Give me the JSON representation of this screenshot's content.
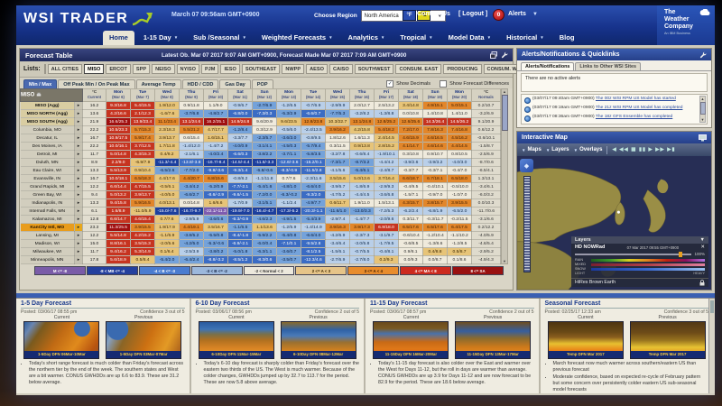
{
  "top": {
    "logo_text": "WSI TRADER",
    "date_text": "March 07 09:56am GMT+0900",
    "choose_region_label": "Choose Region",
    "region_value": "North America",
    "deg_f": "°F",
    "deg_c": "°C",
    "contact_us": "Contact Us",
    "logout": "[ Logout ]",
    "alerts_count": "0",
    "alerts_label": "Alerts",
    "twc_line1": "The",
    "twc_line2": "Weather",
    "twc_line3": "Company",
    "twc_sub": "An IBM Business"
  },
  "nav": {
    "tabs": [
      {
        "label": "Home",
        "active": true,
        "caret": false
      },
      {
        "label": "1-15 Day",
        "active": false,
        "caret": true
      },
      {
        "label": "Sub /Seasonal",
        "active": false,
        "caret": true
      },
      {
        "label": "Weighted Forecasts",
        "active": false,
        "caret": true
      },
      {
        "label": "Analytics",
        "active": false,
        "caret": true
      },
      {
        "label": "Tropical",
        "active": false,
        "caret": true
      },
      {
        "label": "Model Data",
        "active": false,
        "caret": true
      },
      {
        "label": "Historical",
        "active": false,
        "caret": true
      },
      {
        "label": "Blog",
        "active": false,
        "caret": false
      }
    ]
  },
  "forecast_table": {
    "title": "Forecast Table",
    "status": "Latest Ob. Mar 07 2017 9:07 AM GMT+0900, Forecast Made Mar 07 2017 7:09 AM GMT+0900",
    "lists_label": "Lists:",
    "lists": [
      "ALL CITIES",
      "MISO",
      "ERCOT",
      "SPP",
      "NEISO",
      "NYISO",
      "PJM",
      "IESO",
      "SOUTHEAST",
      "NWPP",
      "AESO",
      "CAISO",
      "SOUTHWEST",
      "CONSUM. EAST",
      "PRODUCING",
      "CONSUM. WEST",
      "EAST"
    ],
    "active_list": "MISO",
    "more_button": "»",
    "view_tabs": [
      "Min / Max",
      "Off Peak Min / On Peak Max",
      "Average Temp",
      "HDD / CDD",
      "Gas Day",
      "POP"
    ],
    "active_view_tab": "Min / Max",
    "show_decimals_label": "Show Decimals",
    "show_decimals_checked": "✓",
    "show_differences_label": "Show Forecast Differences",
    "group_label": "MISO",
    "current_header": {
      "line1": "°C",
      "line2": "Current"
    },
    "normals_header": {
      "line1": "°C",
      "line2": "Normals"
    },
    "days": [
      {
        "name": "Mon",
        "date": "(Mar 6)"
      },
      {
        "name": "Tue",
        "date": "(Mar 7)"
      },
      {
        "name": "Wed",
        "date": "(Mar 8)"
      },
      {
        "name": "Thu",
        "date": "(Mar 9)"
      },
      {
        "name": "Fri",
        "date": "(Mar 10)"
      },
      {
        "name": "Sat",
        "date": "(Mar 11)"
      },
      {
        "name": "Sun",
        "date": "(Mar 12)"
      },
      {
        "name": "Mon",
        "date": "(Mar 13)"
      },
      {
        "name": "Tue",
        "date": "(Mar 14)"
      },
      {
        "name": "Wed",
        "date": "(Mar 15)"
      },
      {
        "name": "Thu",
        "date": "(Mar 16)"
      },
      {
        "name": "Fri",
        "date": "(Mar 17)"
      },
      {
        "name": "Sat",
        "date": "(Mar 18)"
      },
      {
        "name": "Sun",
        "date": "(Mar 19)"
      },
      {
        "name": "Mon",
        "date": "(Mar 20)"
      }
    ],
    "rows": [
      {
        "label": "MISO (Agg)",
        "type": "agg",
        "current": "16.2",
        "cells": [
          "9.3/16.8|r",
          "5.4/15.5|r",
          "1.9/12.0|t",
          "0.9/11.8|w",
          "1.1/9.0|w",
          "-0.9/6.7|lb",
          "-2.7/6.9|mb",
          "-1.2/6.5|lb",
          "-0.7/6.9|lb",
          "-2.9/9.9|lb",
          "2.0/12.7|w",
          "2.5/13.2|w",
          "3.4/14.8|t",
          "4.9/15.1|o",
          "5.0/15.1|o"
        ],
        "normals": "0.2/10.7"
      },
      {
        "label": "MISO NORTH (Agg)",
        "type": "agg",
        "current": "13.6",
        "cells": [
          "4.2/16.6|r",
          "2.1/12.3|r",
          "-1.6/7.6|t",
          "-3.7/6.8|mb",
          "-4.8/2.7|mb",
          "-6.8/0.0|b",
          "-7.3/0.3|b",
          "-5.3/2.9|mb",
          "-6.6/0.7|b",
          "-7.7/5.3|mb",
          "-3.2/8.2|lb",
          "-1.3/8.8|lb",
          "0.0/10.8|w",
          "1.4/10.8|w",
          "1.4/11.0|w"
        ],
        "normals": "-3.2/6.9"
      },
      {
        "label": "MISO SOUTH (Agg)",
        "type": "agg",
        "current": "21.9",
        "cells": [
          "16.6/25.3|dr",
          "13.9/23.4|r",
          "11.1/23.4|o",
          "13.1/24.6|r",
          "16.2/25.1|dr",
          "14.9/24.8|r",
          "9.6/20.9|w",
          "9.6/23.5|t",
          "12.8/23.8|o",
          "10.3/22.7|t",
          "13.1/24.8|o",
          "12.8/25.2|o",
          "12.6/25.6|o",
          "14.3/26.4|r",
          "14.5/26.2|r"
        ],
        "normals": "9.1/20.9"
      },
      {
        "label": "Columbia, MO",
        "type": "city",
        "current": "22.2",
        "cells": [
          "10.5/23.3|r",
          "5.7/15.3|o",
          "2.3/18.3|t",
          "5.5/21.2|o",
          "4.7/17.7|t",
          "-1.2/8.4|mb",
          "0.3/12.9|w",
          "-0.5/6.0|lb",
          "-2.4/13.5|lb",
          "3.9/16.2|o",
          "4.2/15.8|t",
          "5.4/18.2|o",
          "7.2/17.0|o",
          "7.8/16.3|o",
          "7.4/16.8|o"
        ],
        "normals": "0.6/12.2"
      },
      {
        "label": "Decatur, IL",
        "type": "city",
        "current": "16.7",
        "cells": [
          "10.9/17.5|r",
          "5.9/17.4|o",
          "3.9/13.7|t",
          "0.6/15.4|w",
          "1.6/15.1|t",
          "-3.3/7.7|lb",
          "-2.3/5.7|mb",
          "-3.6/3.0|mb",
          "-0.8/9.5|lb",
          "1.8/12.6|w",
          "1.6/11.3|w",
          "2.4/14.5|t",
          "4.6/15.9|o",
          "4.6/16.5|o",
          "4.5/16.2|o"
        ],
        "normals": "-0.6/10.1"
      },
      {
        "label": "Des Moines, IA",
        "type": "city",
        "current": "22.2",
        "cells": [
          "10.0/16.1|r",
          "3.7/12.5|r",
          "1.7/11.8|t",
          "-1.4/12.0|lb",
          "-1.4/7.2|lb",
          "-4.0/0.9|mb",
          "-3.1/4.1|mb",
          "-4.5/0.3|mb",
          "-5.7/9.4|mb",
          "0.3/11.5|w",
          "0.9/13.8|t",
          "2.8/15.2|t",
          "4.1/14.7|o",
          "4.6/14.6|o",
          "4.4/14.5|o"
        ],
        "normals": "-1.5/8.7"
      },
      {
        "label": "Detroit, MI",
        "type": "city",
        "current": "11.7",
        "cells": [
          "5.0/14.8|r",
          "4.3/15.3|r",
          "0.4/9.2|t",
          "-2.1/6.1|lb",
          "-4.0/2.4|mb",
          "-6.6/0.3|b",
          "-3.8/2.2|mb",
          "-3.7/1.1|mb",
          "-5.8/3.5|mb",
          "-3.2/7.8|lb",
          "-0.6/8.4|lb",
          "-1.9/10.1|lb",
          "0.3/10.8|w",
          "0.9/10.7|w",
          "0.8/10.5|w"
        ],
        "normals": "-2.5/6.9"
      },
      {
        "label": "Duluth, MN",
        "type": "city",
        "current": "8.9",
        "cells": [
          "2.2/9.0|r",
          "-6.9/7.9|t",
          "-11.3/-4.4|db",
          "-13.8/-3.8|b",
          "-16.7/-8.4|db",
          "-14.5/-4.4|db",
          "-11.6/-3.3|db",
          "-12.6/-3.6|b",
          "-15.2/0.1|b",
          "-7.3/1.7|mb",
          "-8.7/3.2|mb",
          "-4.4/4.2|lb",
          "-3.9/2.6|lb",
          "-3.9/3.2|lb",
          "-4.0/3.0|lb"
        ],
        "normals": "-8.7/0.6"
      },
      {
        "label": "Eau Claire, WI",
        "type": "city",
        "current": "13.3",
        "cells": [
          "5.5/13.9|r",
          "0.9/10.4|t",
          "-6.5/2.6|mb",
          "-7.7/2.0|mb",
          "-9.8/-3.6|b",
          "-9.3/1.4|b",
          "-6.8/-0.6|mb",
          "-8.3/-0.9|b",
          "-11.5/2.8|b",
          "-4.1/5.6|lb",
          "-5.4/6.1|mb",
          "-2.4/8.7|lb",
          "-0.3/7.7|w",
          "-0.3/7.1|w",
          "-0.4/7.0|w"
        ],
        "normals": "-6.5/4.1"
      },
      {
        "label": "Evansville, IN",
        "type": "city",
        "current": "16.7",
        "cells": [
          "10.0/18.1|r",
          "6.5/18.3|o",
          "4.4/17.6|t",
          "4.4/20.7|o",
          "6.8/15.6|o",
          "-0.8/8.2|lb",
          "-1.1/11.8|lb",
          "0.7/7.6|w",
          "-2.3/11.6|lb",
          "3.5/15.6|t",
          "5.0/13.6|t",
          "3.7/16.4|t",
          "6.6/18.7|o",
          "6.7/18.1|o",
          "6.5/18.0|o"
        ],
        "normals": "1.3/13.1"
      },
      {
        "label": "Grand Rapids, MI",
        "type": "city",
        "current": "12.2",
        "cells": [
          "6.6/14.4|r",
          "4.7/15.5|r",
          "-0.5/6.1|t",
          "-3.4/4.2|mb",
          "-5.2/0.9|mb",
          "-7.7/-2.1|b",
          "-5.4/1.6|mb",
          "-4.8/1.0|mb",
          "-6.6/4.0|mb",
          "-3.9/6.7|lb",
          "-1.8/6.9|lb",
          "-2.9/9.3|lb",
          "-0.4/9.5|w",
          "-0.4/10.1|w",
          "-0.5/10.0|w"
        ],
        "normals": "-3.4/6.1"
      },
      {
        "label": "Green Bay, WI",
        "type": "city",
        "current": "9.4",
        "cells": [
          "5.0/13.2|r",
          "3.9/13.7|r",
          "-4.0/5.0|t",
          "-6.6/2.7|mb",
          "-8.6/-2.9|b",
          "-9.6/-1.5|b",
          "-7.2/0.0|mb",
          "-6.3/-0.2|mb",
          "-9.3/2.0|b",
          "-4.7/5.2|lb",
          "-4.4/4.5|lb",
          "-3.6/6.8|lb",
          "-1.5/7.1|w",
          "-0.9/7.0|w",
          "-1.0/7.0|w"
        ],
        "normals": "-6.0/3.2"
      },
      {
        "label": "Indianapolis, IN",
        "type": "city",
        "current": "13.3",
        "cells": [
          "9.4/15.8|r",
          "5.9/16.5|o",
          "4.0/13.1|t",
          "0.0/14.8|w",
          "1.6/6.6|t",
          "-1.7/0.9|lb",
          "-3.1/5.1|mb",
          "-1.1/2.4|lb",
          "-4.9/7.7|mb",
          "0.6/11.7|t",
          "1.9/11.0|w",
          "1.5/13.1|w",
          "4.3/15.7|o",
          "3.8/15.7|o",
          "3.9/15.5|o"
        ],
        "normals": "0.0/10.3"
      },
      {
        "label": "Internatl Falls, MN",
        "type": "city",
        "current": "6.1",
        "cells": [
          "1.6/8.9|r",
          "-11.0/5.9|t",
          "-15.0/-7.6|db",
          "-16.7/-9.7|db",
          "-22.1/-11.3|p",
          "-19.9/-7.0|db",
          "-16.4/-4.7|db",
          "-17.3/-5.2|db",
          "-20.3/-1.1|b",
          "-11.6/1.0|mb",
          "-13.0/3.3|mb",
          "-7.2/5.3|lb",
          "-6.2/2.4|lb",
          "-6.8/1.9|lb",
          "-6.5/2.0|lb"
        ],
        "normals": "-11.7/0.6"
      },
      {
        "label": "Kalamazoo, MI",
        "type": "city",
        "current": "12.8",
        "cells": [
          "6.6/14.7|r",
          "4.6/15.4|r",
          "0.7/7.6|t",
          "-2.9/5.9|lb",
          "-3.6/0.6|mb",
          "-6.3/-0.9|b",
          "-4.6/2.3|mb",
          "-4.9/1.5|mb",
          "-5.4/3.9|mb",
          "-2.9/7.4|lb",
          "-1.4/7.7|lb",
          "-2.0/9.6|lb",
          "0.3/11.7|w",
          "-0.3/11.7|w",
          "-0.2/11.5|w"
        ],
        "normals": "-3.1/6.6"
      },
      {
        "label": "KanCity Intl, MO",
        "type": "sel",
        "current": "23.3",
        "cells": [
          "11.3/25.5|dr",
          "3.9/15.5|o",
          "1.9/17.9|t",
          "4.4/19.1|o",
          "3.5/16.7|t",
          "-1.1/6.5|mb",
          "1.1/13.6|t",
          "-1.2/5.9|lb",
          "-1.4/14.9|lb",
          "3.9/16.3|o",
          "3.9/17.3|o",
          "6.9/18.0|r",
          "6.5/17.6|o",
          "6.5/17.6|o",
          "6.4/17.5|o"
        ],
        "normals": "0.2/12.2"
      },
      {
        "label": "Lansing, MI",
        "type": "city",
        "current": "12.2",
        "cells": [
          "5.5/14.8|r",
          "4.2/15.2|r",
          "-1.1/6.9|t",
          "-3.8/5.2|mb",
          "-5.5/0.8|mb",
          "-8.4/-1.8|b",
          "-5.9/2.2|mb",
          "-5.4/0.8|mb",
          "-6.6/4.0|mb",
          "-4.2/6.9|lb",
          "-2.3/7.3|lb",
          "-3.1/9.7|lb",
          "-0.6/10.4|w",
          "-1.2/10.4|w",
          "-1.1/10.2|w"
        ],
        "normals": "-4.0/5.9"
      },
      {
        "label": "Madison, WI",
        "type": "city",
        "current": "15.0",
        "cells": [
          "8.8/16.1|r",
          "3.5/15.3|r",
          "-2.0/5.6|t",
          "-4.2/5.0|mb",
          "-5.3/-0.6|mb",
          "-6.9/-2.1|b",
          "-6.0/0.4|mb",
          "-7.1/0.1|b",
          "-9.5/2.8|b",
          "-3.4/6.4|lb",
          "-3.0/5.8|lb",
          "-1.7/9.5|lb",
          "-0.6/8.5|w",
          "-1.3/8.6|w",
          "-1.2/8.5|w"
        ],
        "normals": "-4.6/5.4"
      },
      {
        "label": "Milwaukee, WI",
        "type": "city",
        "current": "11.7",
        "cells": [
          "9.4/16.2|r",
          "5.3/14.9|r",
          "0.1/6.4|t",
          "-2.5/3.9|lb",
          "-3.8/0.2|mb",
          "-5.0/1.8|mb",
          "-6.3/1.1|mb",
          "-3.6/0.7|mb",
          "-8.1/2.5|b",
          "-1.5/6.1|lb",
          "-0.7/5.5|lb",
          "-0.4/8.1|lb",
          "0.9/8.1|w",
          "0.4/8.8|t",
          "0.5/8.7|t"
        ],
        "normals": "-2.9/5.2"
      },
      {
        "label": "Minneapolis, MN",
        "type": "city",
        "current": "17.8",
        "cells": [
          "5.6/18.9|r",
          "0.5/8.4|t",
          "-5.4/2.0|mb",
          "-6.4/2.4|mb",
          "-8.8/-3.2|b",
          "-8.5/1.2|b",
          "-8.3/0.6|b",
          "-3.5/0.7|mb",
          "-12.3/4.6|b",
          "-2.7/6.9|lb",
          "-2.7/8.0|lb",
          "0.2/9.3|t",
          "0.0/9.3|w",
          "0.0/8.7|w",
          "0.1/8.6|w"
        ],
        "normals": "-4.9/4.3"
      }
    ],
    "legend": [
      {
        "label": "M <= -8",
        "bg": "#7a5ca8",
        "fg": "#ffffff"
      },
      {
        "label": "-8 < MB <= -4",
        "bg": "#24409e",
        "fg": "#ffffff"
      },
      {
        "label": "-4 < B <= -3",
        "bg": "#4a7cd0",
        "fg": "#ffffff"
      },
      {
        "label": "-3 < B <= -2",
        "bg": "#9cb8dc",
        "fg": "#1a2a4a"
      },
      {
        "label": "-2 < Normal < 2",
        "bg": "#ece8dc",
        "fg": "#333333"
      },
      {
        "label": "2 <= A < 3",
        "bg": "#e6c488",
        "fg": "#3a2600"
      },
      {
        "label": "3 <= A < 4",
        "bg": "#e88c2c",
        "fg": "#3a1a00"
      },
      {
        "label": "4 <= MA < 8",
        "bg": "#cc2a1e",
        "fg": "#ffffff"
      },
      {
        "label": "8 <= SA",
        "bg": "#991111",
        "fg": "#ffffff"
      }
    ]
  },
  "alerts_panel": {
    "title": "Alerts/Notifications & Quicklinks",
    "tabs": [
      "Alerts/Notifications",
      "Links to Other WSI Sites"
    ],
    "active_tab": "Alerts/Notifications",
    "no_alerts_text": "There are no active alerts",
    "items": [
      {
        "time": "(03/07/17 09:40am GMT+0900)",
        "link": "The 00z WSI RPM US Model has started"
      },
      {
        "time": "(03/07/17 09:19am GMT+0900)",
        "link": "The 21z WSI RPM US Model has completed"
      },
      {
        "time": "(03/07/17 08:36am GMT+0900)",
        "link": "The 18z GFS Ensemble has completed"
      }
    ]
  },
  "map_panel": {
    "title": "Interactive Map",
    "maps_label": "Maps",
    "layers_label": "Layers",
    "overlays_label": "Overlays",
    "playback": "◀ ◀◀ ▦ ▮▮ ▶ ▶▶ ▶▮",
    "layers_box": {
      "title": "Layers",
      "product": "HD NOWRad",
      "timestamp": "07 Mar 2017 09:55 GMT+0900",
      "opacity": "100%",
      "rain": "RAIN",
      "mixed": "MIXED",
      "snow": "SNOW",
      "light": "LIGHT",
      "heavy": "HEAVY",
      "base_layer": "HiRes Brown Earth"
    }
  },
  "bottom_panels": [
    {
      "title": "1-5 Day Forecast",
      "posted": "Posted: 03/06/17 08:55 pm",
      "confidence": "Confidence 3 out of 5",
      "current_label": "Current",
      "previous_label": "Previous",
      "current_caption": "1-5Day DFN 06Mar-10Mar",
      "previous_caption": "1-5Day DFN 03Mar-07Mar",
      "bullets": [
        "Today's short range forecast is much colder than Friday's forecast across the northern tier by the end of the week. The southern states and West are a bit warmer. CONUS GWHDDs are up 6.6 to 83.9. These are 31.2 below average."
      ]
    },
    {
      "title": "6-10 Day Forecast",
      "posted": "Posted: 03/06/17 08:56 pm",
      "confidence": "Confidence 2 out of 5",
      "current_label": "Current",
      "previous_label": "Previous",
      "current_caption": "6-10Day DFN 11Mar-15Mar",
      "previous_caption": "6-10Day DFN 08Mar-12Mar",
      "bullets": [
        "Today's 6-10 day forecast is sharply colder than Friday's forecast over the eastern two thirds of the US. The West is much warmer. Because of the colder changes, GWHDDs jumped up by 32.7 to 113.7 for the period. These are now 5.8 above average."
      ]
    },
    {
      "title": "11-15 Day Forecast",
      "posted": "Posted: 03/06/17 08:57 pm",
      "confidence": "Confidence 2 out of 5",
      "current_label": "Current",
      "previous_label": "Previous",
      "current_caption": "11-15Day DFN 16Mar-20Mar",
      "previous_caption": "11-15Day DFN 13Mar-17Mar",
      "bullets": [
        "Today's 11-15 day forecast is also colder over the East and warmer over the West for Days 11-12, but the roll in days are warmer than average. CONUS GWHDDs are up 3.9 for Days 11-12 and are now forecast to be 82.9 for the period. These are 18.6 below average."
      ]
    },
    {
      "title": "Seasonal Forecast",
      "posted": "Posted: 02/25/17 12:33 am",
      "confidence": "Confidence 3 out of 5",
      "current_label": "Current",
      "previous_label": "Previous",
      "current_caption": "Temp DFN Mar 2017",
      "previous_caption": "Temp DFN Mar 2017",
      "bullets": [
        "March forecast now much warmer across southern/eastern US than previous forecast",
        "Moderate confidence, based on expected re-cycle of February pattern but some concern over persistently colder eastern US sub-seasonal model forecasts"
      ]
    }
  ]
}
